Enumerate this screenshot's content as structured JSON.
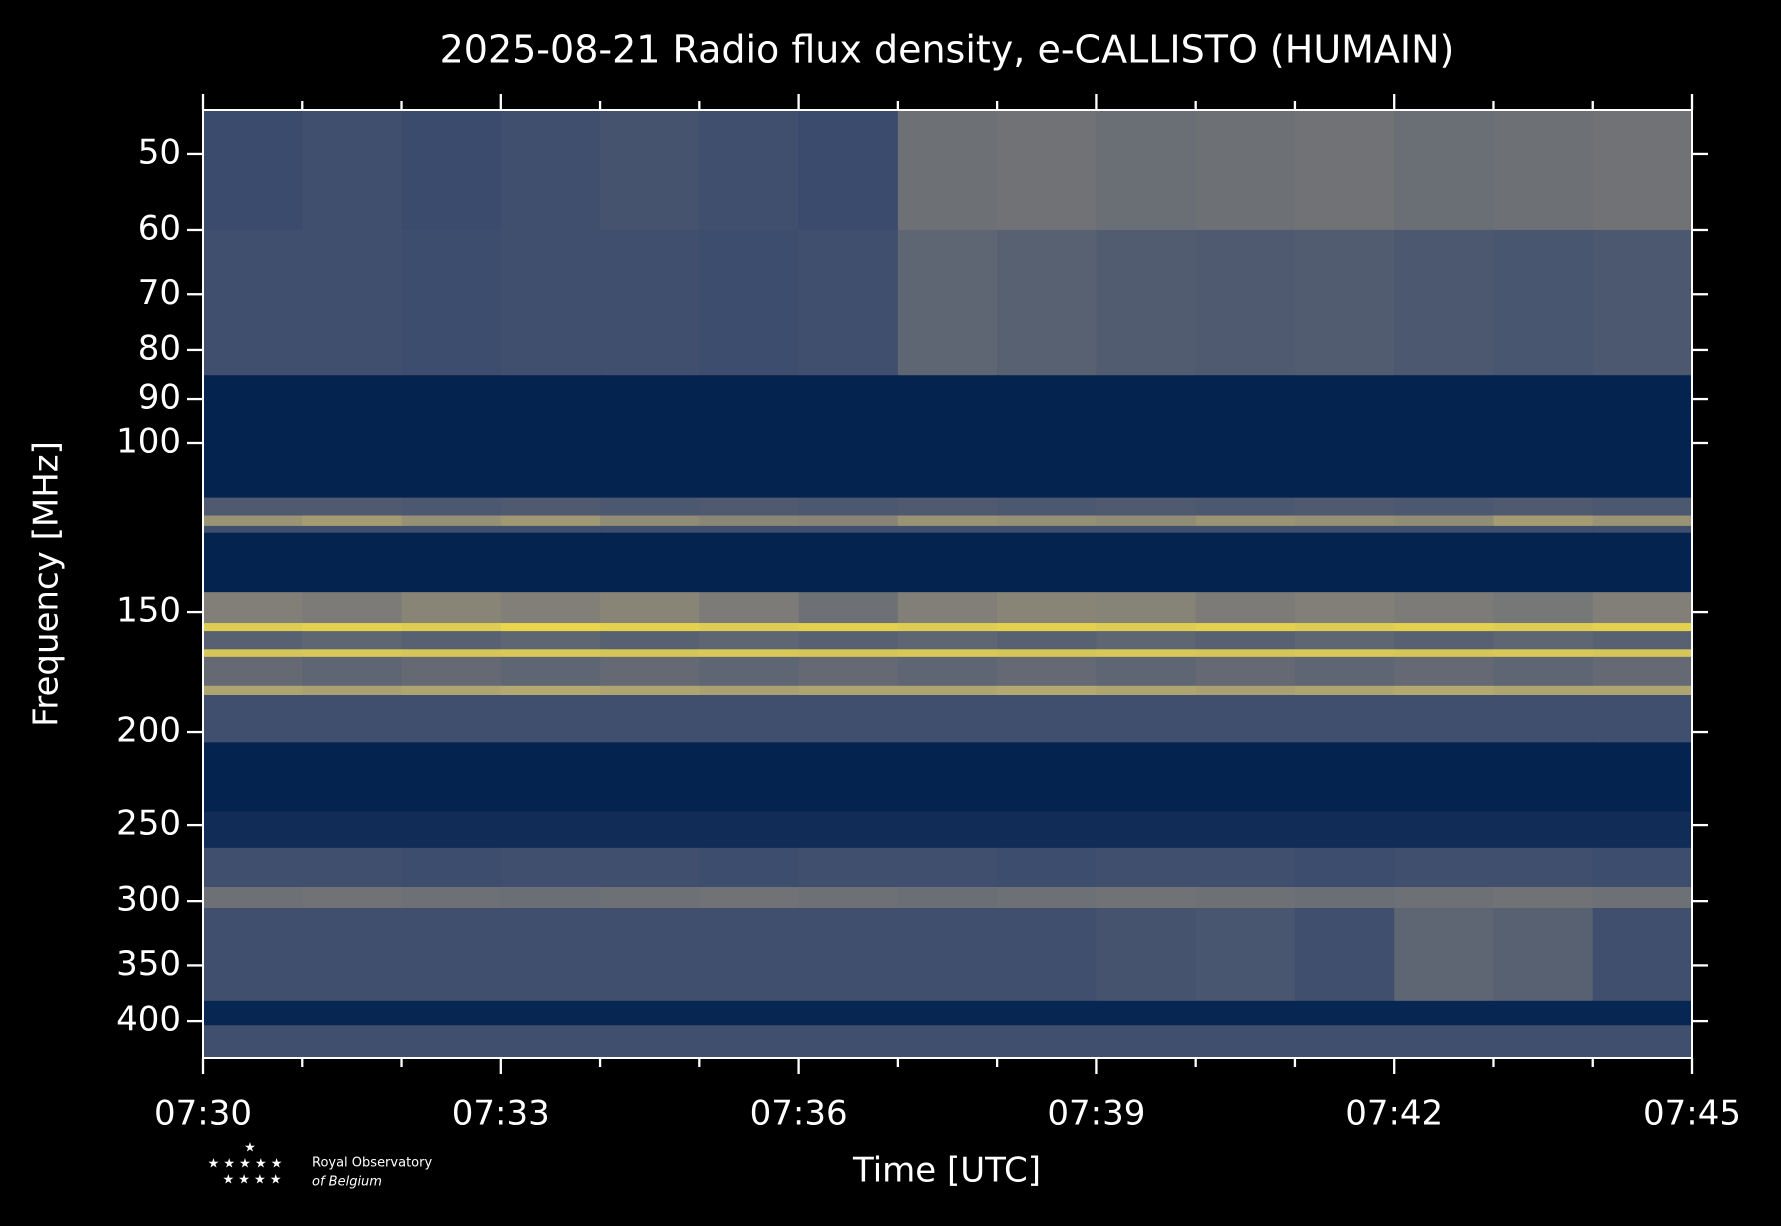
{
  "chart_data": {
    "type": "heatmap",
    "title": "2025-08-21 Radio flux density, e-CALLISTO (HUMAIN)",
    "xlabel": "Time [UTC]",
    "ylabel": "Frequency [MHz]",
    "xlim": [
      "07:30",
      "07:45"
    ],
    "xticks": [
      "07:30",
      "07:33",
      "07:36",
      "07:39",
      "07:42",
      "07:45"
    ],
    "xminorticks": [
      "07:31",
      "07:32",
      "07:34",
      "07:35",
      "07:37",
      "07:38",
      "07:40",
      "07:41",
      "07:43",
      "07:44"
    ],
    "ylim": [
      45,
      437
    ],
    "yscale": "log",
    "yinverted": true,
    "yticks": [
      50,
      60,
      70,
      80,
      90,
      100,
      150,
      200,
      250,
      300,
      350,
      400
    ],
    "colormap": [
      "#00204d",
      "#31446b",
      "#7c7b78",
      "#bcaf6f",
      "#fee838"
    ],
    "x_edges": [
      "07:30",
      "07:31",
      "07:32",
      "07:33",
      "07:34",
      "07:35",
      "07:36",
      "07:37",
      "07:38",
      "07:39",
      "07:40",
      "07:41",
      "07:42",
      "07:43",
      "07:44",
      "07:45"
    ],
    "y_edges": [
      45,
      60,
      85,
      114,
      119,
      122,
      124,
      143,
      154,
      157,
      164,
      167,
      179,
      183,
      205,
      242,
      264,
      290,
      305,
      381,
      404,
      437
    ],
    "z": [
      [
        0.28,
        0.3,
        0.28,
        0.3,
        0.32,
        0.3,
        0.28,
        0.45,
        0.46,
        0.44,
        0.45,
        0.46,
        0.44,
        0.45,
        0.46
      ],
      [
        0.3,
        0.3,
        0.29,
        0.3,
        0.3,
        0.29,
        0.3,
        0.4,
        0.38,
        0.36,
        0.35,
        0.36,
        0.34,
        0.33,
        0.34
      ],
      [
        0.02,
        0.02,
        0.02,
        0.02,
        0.02,
        0.02,
        0.02,
        0.02,
        0.02,
        0.02,
        0.02,
        0.02,
        0.02,
        0.02,
        0.02
      ],
      [
        0.35,
        0.35,
        0.34,
        0.35,
        0.34,
        0.35,
        0.34,
        0.35,
        0.34,
        0.35,
        0.34,
        0.35,
        0.34,
        0.35,
        0.34
      ],
      [
        0.62,
        0.66,
        0.6,
        0.64,
        0.58,
        0.56,
        0.55,
        0.62,
        0.6,
        0.58,
        0.62,
        0.6,
        0.58,
        0.66,
        0.62
      ],
      [
        0.3,
        0.3,
        0.3,
        0.3,
        0.3,
        0.3,
        0.3,
        0.3,
        0.3,
        0.3,
        0.3,
        0.3,
        0.3,
        0.3,
        0.3
      ],
      [
        0.02,
        0.02,
        0.02,
        0.02,
        0.02,
        0.02,
        0.02,
        0.02,
        0.02,
        0.02,
        0.02,
        0.02,
        0.02,
        0.02,
        0.02
      ],
      [
        0.52,
        0.5,
        0.55,
        0.52,
        0.55,
        0.5,
        0.45,
        0.52,
        0.55,
        0.54,
        0.5,
        0.52,
        0.5,
        0.48,
        0.52
      ],
      [
        0.88,
        0.9,
        0.88,
        0.92,
        0.9,
        0.88,
        0.9,
        0.88,
        0.9,
        0.88,
        0.9,
        0.88,
        0.9,
        0.88,
        0.9
      ],
      [
        0.38,
        0.4,
        0.38,
        0.4,
        0.38,
        0.4,
        0.38,
        0.4,
        0.38,
        0.4,
        0.38,
        0.4,
        0.38,
        0.4,
        0.38
      ],
      [
        0.85,
        0.86,
        0.85,
        0.86,
        0.85,
        0.86,
        0.85,
        0.86,
        0.85,
        0.86,
        0.85,
        0.86,
        0.85,
        0.86,
        0.85
      ],
      [
        0.42,
        0.4,
        0.42,
        0.4,
        0.42,
        0.4,
        0.42,
        0.4,
        0.42,
        0.4,
        0.42,
        0.4,
        0.42,
        0.4,
        0.42
      ],
      [
        0.7,
        0.68,
        0.7,
        0.72,
        0.7,
        0.68,
        0.7,
        0.7,
        0.72,
        0.7,
        0.68,
        0.7,
        0.72,
        0.7,
        0.7
      ],
      [
        0.3,
        0.3,
        0.3,
        0.3,
        0.3,
        0.3,
        0.3,
        0.3,
        0.3,
        0.3,
        0.3,
        0.3,
        0.3,
        0.3,
        0.3
      ],
      [
        0.02,
        0.02,
        0.02,
        0.02,
        0.02,
        0.02,
        0.02,
        0.02,
        0.02,
        0.02,
        0.02,
        0.02,
        0.02,
        0.02,
        0.02
      ],
      [
        0.08,
        0.08,
        0.08,
        0.08,
        0.08,
        0.08,
        0.08,
        0.08,
        0.08,
        0.08,
        0.08,
        0.08,
        0.08,
        0.08,
        0.08
      ],
      [
        0.3,
        0.3,
        0.29,
        0.3,
        0.3,
        0.29,
        0.3,
        0.3,
        0.29,
        0.3,
        0.3,
        0.29,
        0.3,
        0.3,
        0.29
      ],
      [
        0.45,
        0.46,
        0.45,
        0.44,
        0.45,
        0.46,
        0.45,
        0.44,
        0.45,
        0.46,
        0.45,
        0.44,
        0.45,
        0.46,
        0.45
      ],
      [
        0.3,
        0.3,
        0.3,
        0.3,
        0.3,
        0.3,
        0.3,
        0.3,
        0.3,
        0.32,
        0.33,
        0.3,
        0.4,
        0.38,
        0.3
      ],
      [
        0.04,
        0.04,
        0.04,
        0.04,
        0.04,
        0.04,
        0.04,
        0.04,
        0.04,
        0.04,
        0.04,
        0.04,
        0.04,
        0.04,
        0.04
      ],
      [
        0.3,
        0.3,
        0.3,
        0.3,
        0.3,
        0.3,
        0.3,
        0.3,
        0.3,
        0.3,
        0.3,
        0.3,
        0.3,
        0.3,
        0.3
      ]
    ]
  },
  "logo": {
    "line1": "Royal Observatory",
    "line2": "of Belgium"
  }
}
